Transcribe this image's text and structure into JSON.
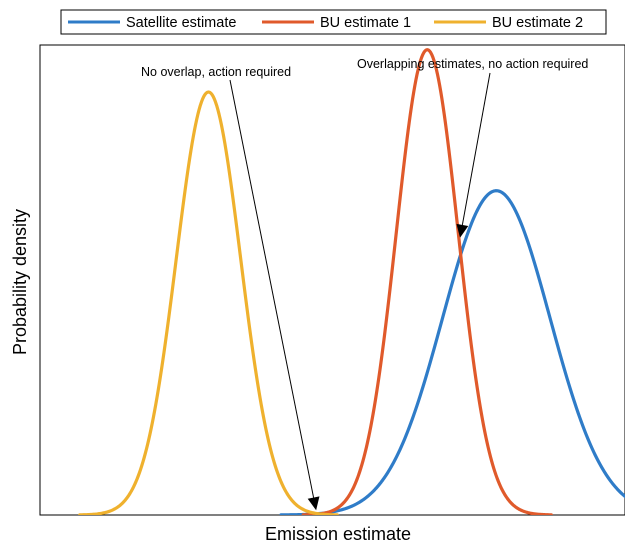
{
  "chart_data": {
    "type": "line",
    "title": "",
    "xlabel": "Emission estimate",
    "ylabel": "Probability density",
    "xlim": [
      0,
      1
    ],
    "ylim": [
      0,
      1
    ],
    "xticks": [],
    "yticks": [],
    "grid": false,
    "legend": {
      "placement": "top-outside",
      "orientation": "horizontal"
    },
    "series": [
      {
        "name": "Satellite estimate",
        "color": "#2f7cc8",
        "distribution": "normal",
        "mean": 0.78,
        "sd": 0.092,
        "peak": 0.69
      },
      {
        "name": "BU estimate 1",
        "color": "#e05a2b",
        "distribution": "normal",
        "mean": 0.662,
        "sd": 0.053,
        "peak": 0.99
      },
      {
        "name": "BU estimate 2",
        "color": "#efb12e",
        "distribution": "normal",
        "mean": 0.288,
        "sd": 0.055,
        "peak": 0.9
      }
    ],
    "annotations": [
      {
        "text": "No overlap, action required",
        "target_x": 0.472,
        "target_y": 0.01
      },
      {
        "text": "Overlapping estimates, no action required",
        "target_x": 0.718,
        "target_y": 0.59
      }
    ]
  }
}
